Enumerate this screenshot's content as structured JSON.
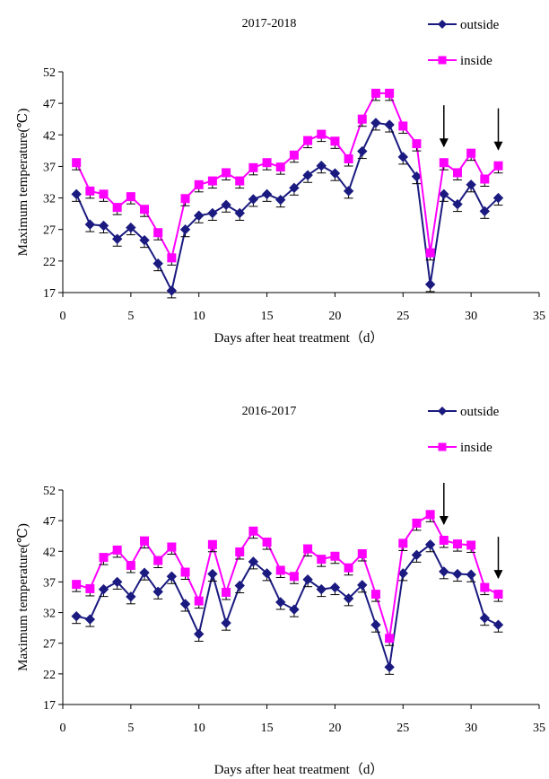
{
  "chart_data": [
    {
      "type": "line",
      "title": "2017-2018",
      "xlabel": "Days after heat treatment（d）",
      "ylabel": "Maximum temperature(℃)",
      "xlim": [
        0,
        35
      ],
      "ylim": [
        17,
        52
      ],
      "xticks": [
        0,
        5,
        10,
        15,
        20,
        25,
        30,
        35
      ],
      "yticks": [
        17,
        22,
        27,
        32,
        37,
        42,
        47,
        52
      ],
      "grid": false,
      "legend": "top-right",
      "error_bars": true,
      "arrows_at": [
        28,
        32
      ],
      "x": [
        1,
        2,
        3,
        4,
        5,
        6,
        7,
        8,
        9,
        10,
        11,
        12,
        13,
        14,
        15,
        16,
        17,
        18,
        19,
        20,
        21,
        22,
        23,
        24,
        25,
        26,
        27,
        28,
        29,
        30,
        31,
        32
      ],
      "series": [
        {
          "name": "outside",
          "color": "#1a1a80",
          "marker": "diamond",
          "values": [
            32.6,
            27.8,
            27.6,
            25.5,
            27.3,
            25.3,
            21.6,
            17.3,
            27.0,
            29.2,
            29.6,
            30.9,
            29.6,
            31.8,
            32.6,
            31.7,
            33.6,
            35.6,
            37.1,
            35.9,
            33.1,
            39.4,
            43.9,
            43.6,
            38.5,
            35.4,
            18.3,
            32.6,
            31.0,
            34.1,
            29.9,
            32.0
          ]
        },
        {
          "name": "inside",
          "color": "#ff00ff",
          "marker": "square",
          "values": [
            37.6,
            33.1,
            32.6,
            30.5,
            32.2,
            30.2,
            26.5,
            22.5,
            31.9,
            34.1,
            34.7,
            36.0,
            34.7,
            36.8,
            37.6,
            36.9,
            38.8,
            41.1,
            42.1,
            41.0,
            38.2,
            44.5,
            48.6,
            48.6,
            43.4,
            40.6,
            23.3,
            37.6,
            36.0,
            39.1,
            35.0,
            37.1
          ]
        }
      ]
    },
    {
      "type": "line",
      "title": "2016-2017",
      "xlabel": "Days after heat treatment（d）",
      "ylabel": "Maximum temperature(℃)",
      "xlim": [
        0,
        35
      ],
      "ylim": [
        17,
        52
      ],
      "xticks": [
        0,
        5,
        10,
        15,
        20,
        25,
        30,
        35
      ],
      "yticks": [
        17,
        22,
        27,
        32,
        37,
        42,
        47,
        52
      ],
      "grid": false,
      "legend": "top-right",
      "error_bars": true,
      "arrows_at": [
        28,
        32
      ],
      "x": [
        1,
        2,
        3,
        4,
        5,
        6,
        7,
        8,
        9,
        10,
        11,
        12,
        13,
        14,
        15,
        16,
        17,
        18,
        19,
        20,
        21,
        22,
        23,
        24,
        25,
        26,
        27,
        28,
        29,
        30,
        31,
        32
      ],
      "series": [
        {
          "name": "outside",
          "color": "#1a1a80",
          "marker": "diamond",
          "values": [
            31.4,
            30.9,
            35.8,
            37.0,
            34.6,
            38.5,
            35.4,
            37.9,
            33.4,
            28.5,
            38.3,
            30.3,
            36.4,
            40.3,
            38.4,
            33.7,
            32.5,
            37.4,
            35.8,
            36.1,
            34.3,
            36.5,
            30.0,
            23.1,
            38.4,
            41.4,
            43.1,
            38.7,
            38.3,
            38.2,
            31.1,
            30.0
          ]
        },
        {
          "name": "inside",
          "color": "#ff00ff",
          "marker": "square",
          "values": [
            36.6,
            35.9,
            41.0,
            42.2,
            39.7,
            43.7,
            40.5,
            42.7,
            38.6,
            33.9,
            43.1,
            35.3,
            41.9,
            45.3,
            43.5,
            38.9,
            37.9,
            42.4,
            40.7,
            41.2,
            39.3,
            41.6,
            35.0,
            27.8,
            43.3,
            46.6,
            48.0,
            43.8,
            43.2,
            43.0,
            36.1,
            35.0
          ]
        }
      ]
    }
  ]
}
